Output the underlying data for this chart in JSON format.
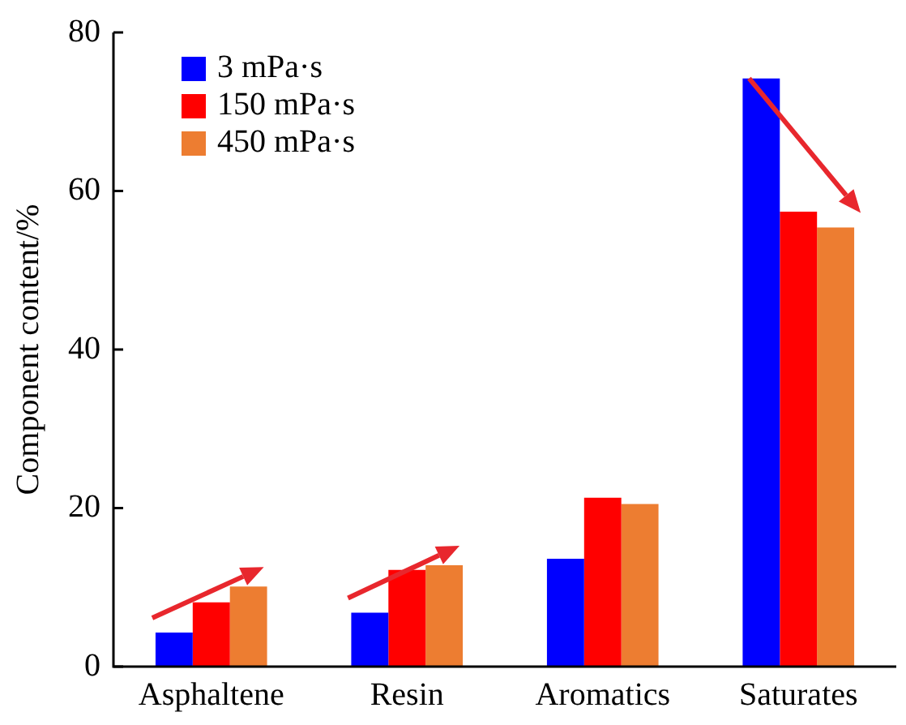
{
  "chart_data": {
    "type": "bar",
    "ylabel": "Component content/%",
    "categories": [
      "Asphaltene",
      "Resin",
      "Aromatics",
      "Saturates"
    ],
    "series": [
      {
        "name": "3 mPa·s",
        "color": "#0000ff",
        "values": [
          4.3,
          6.8,
          13.6,
          74.2
        ]
      },
      {
        "name": "150 mPa·s",
        "color": "#ff0000",
        "values": [
          8.1,
          12.2,
          21.3,
          57.4
        ]
      },
      {
        "name": "450 mPa·s",
        "color": "#ed7d31",
        "values": [
          10.1,
          12.8,
          20.5,
          55.4
        ]
      }
    ],
    "ylim": [
      0,
      80
    ],
    "yticks": [
      0,
      20,
      40,
      60,
      80
    ],
    "grid": false,
    "legend": "top left"
  }
}
